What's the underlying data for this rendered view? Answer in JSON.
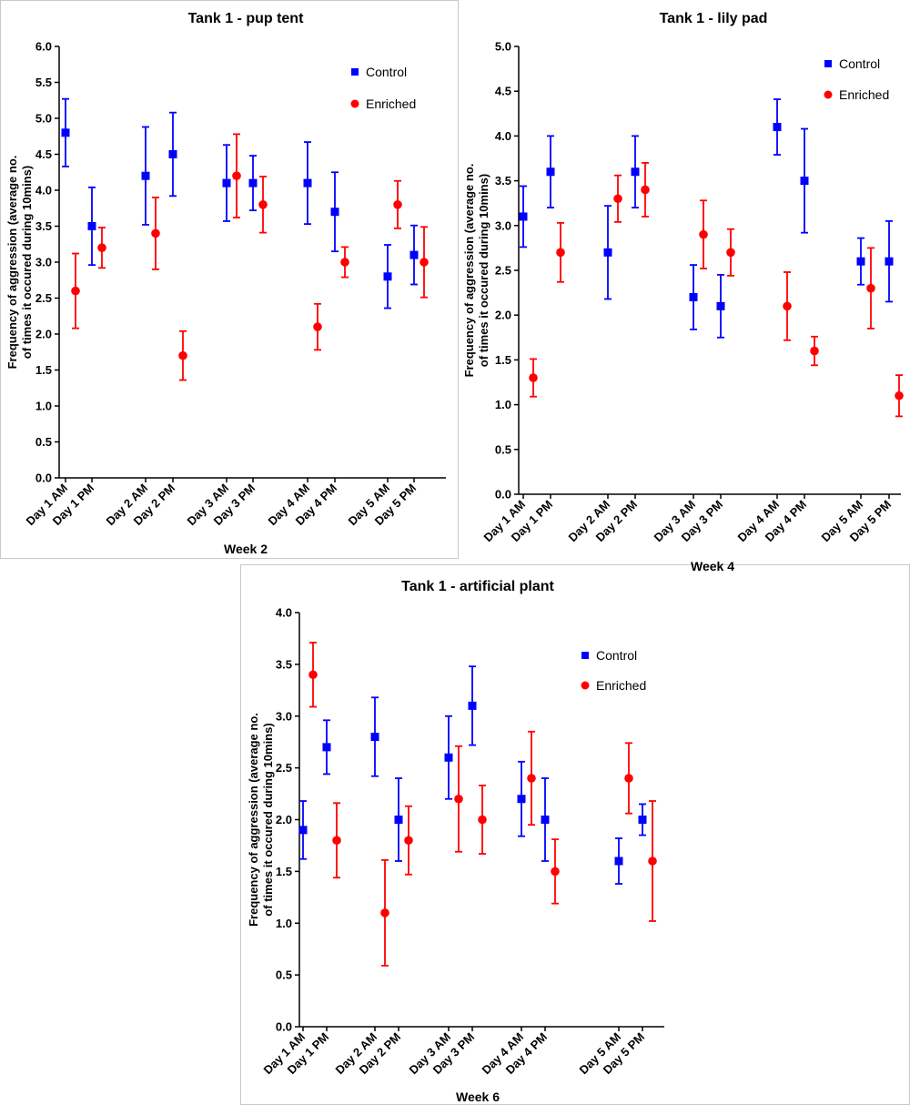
{
  "colors": {
    "control": "#0000ff",
    "enriched": "#ff0000",
    "axis": "#000000"
  },
  "chart_data": [
    {
      "type": "scatter",
      "title": "Tank 1 - pup tent",
      "xlabel": "Week 2",
      "ylabel": [
        "Frequency of  aggression (average no.",
        "of times it occured during 10mins)"
      ],
      "ylim": [
        0,
        6
      ],
      "yticks": [
        "0.0",
        "0.5",
        "1.0",
        "1.5",
        "2.0",
        "2.5",
        "3.0",
        "3.5",
        "4.0",
        "4.5",
        "5.0",
        "5.5",
        "6.0"
      ],
      "categories": [
        "Day 1 AM",
        "Day 1 PM",
        "Day 2 AM",
        "Day 2 PM",
        "Day 3 AM",
        "Day 3 PM",
        "Day 4 AM",
        "Day 4 PM",
        "Day 5 AM",
        "Day 5 PM"
      ],
      "legend_position": "top-right",
      "series": [
        {
          "name": "Control",
          "marker": "square",
          "values": [
            4.8,
            3.5,
            4.2,
            4.5,
            4.1,
            4.1,
            4.1,
            3.7,
            2.8,
            3.1
          ],
          "err": [
            0.47,
            0.54,
            0.68,
            0.58,
            0.53,
            0.38,
            0.57,
            0.55,
            0.44,
            0.41
          ]
        },
        {
          "name": "Enriched",
          "marker": "circle",
          "values": [
            2.6,
            3.2,
            3.4,
            1.7,
            4.2,
            3.8,
            2.1,
            3.0,
            3.8,
            3.0
          ],
          "err": [
            0.52,
            0.28,
            0.5,
            0.34,
            0.58,
            0.39,
            0.32,
            0.21,
            0.33,
            0.49
          ]
        }
      ]
    },
    {
      "type": "scatter",
      "title": "Tank 1 - lily pad",
      "xlabel": "Week 4",
      "ylabel": [
        "Frequency of  aggression (average no.",
        "of times it occured during 10mins)"
      ],
      "ylim": [
        0,
        5
      ],
      "yticks": [
        "0.0",
        "0.5",
        "1.0",
        "1.5",
        "2.0",
        "2.5",
        "3.0",
        "3.5",
        "4.0",
        "4.5",
        "5.0"
      ],
      "categories": [
        "Day 1 AM",
        "Day 1 PM",
        "Day 2 AM",
        "Day 2 PM",
        "Day 3 AM",
        "Day 3 PM",
        "Day 4 AM",
        "Day 4 PM",
        "Day 5 AM",
        "Day 5 PM"
      ],
      "legend_position": "top-right",
      "series": [
        {
          "name": "Control",
          "marker": "square",
          "values": [
            3.1,
            3.6,
            2.7,
            3.6,
            2.2,
            2.1,
            4.1,
            3.5,
            2.6,
            2.6
          ],
          "err": [
            0.34,
            0.4,
            0.52,
            0.4,
            0.36,
            0.35,
            0.31,
            0.58,
            0.26,
            0.45
          ]
        },
        {
          "name": "Enriched",
          "marker": "circle",
          "values": [
            1.3,
            2.7,
            3.3,
            3.4,
            2.9,
            2.7,
            2.1,
            1.6,
            2.3,
            1.1
          ],
          "err": [
            0.21,
            0.33,
            0.26,
            0.3,
            0.38,
            0.26,
            0.38,
            0.16,
            0.45,
            0.23
          ]
        }
      ]
    },
    {
      "type": "scatter",
      "title": "Tank 1 - artificial plant",
      "xlabel": "Week 6",
      "ylabel": [
        "Frequency of  aggression (average no.",
        "of times it occured during 10mins)"
      ],
      "ylim": [
        0,
        4
      ],
      "yticks": [
        "0.0",
        "0.5",
        "1.0",
        "1.5",
        "2.0",
        "2.5",
        "3.0",
        "3.5",
        "4.0"
      ],
      "categories": [
        "Day 1 AM",
        "Day 1 PM",
        "Day 2 AM",
        "Day 2 PM",
        "Day 3 AM",
        "Day 3 PM",
        "Day 4 AM",
        "Day 4 PM",
        "Day 5 AM",
        "Day 5 PM"
      ],
      "legend_position": "top-right",
      "series": [
        {
          "name": "Control",
          "marker": "square",
          "values": [
            1.9,
            2.7,
            2.8,
            2.0,
            2.6,
            3.1,
            2.2,
            2.0,
            1.6,
            2.0
          ],
          "err": [
            0.28,
            0.26,
            0.38,
            0.4,
            0.4,
            0.38,
            0.36,
            0.4,
            0.22,
            0.15
          ]
        },
        {
          "name": "Enriched",
          "marker": "circle",
          "values": [
            3.4,
            1.8,
            1.1,
            1.8,
            2.2,
            2.0,
            2.4,
            1.5,
            2.4,
            1.6
          ],
          "err": [
            0.31,
            0.36,
            0.51,
            0.33,
            0.51,
            0.33,
            0.45,
            0.31,
            0.34,
            0.58
          ]
        }
      ]
    }
  ]
}
